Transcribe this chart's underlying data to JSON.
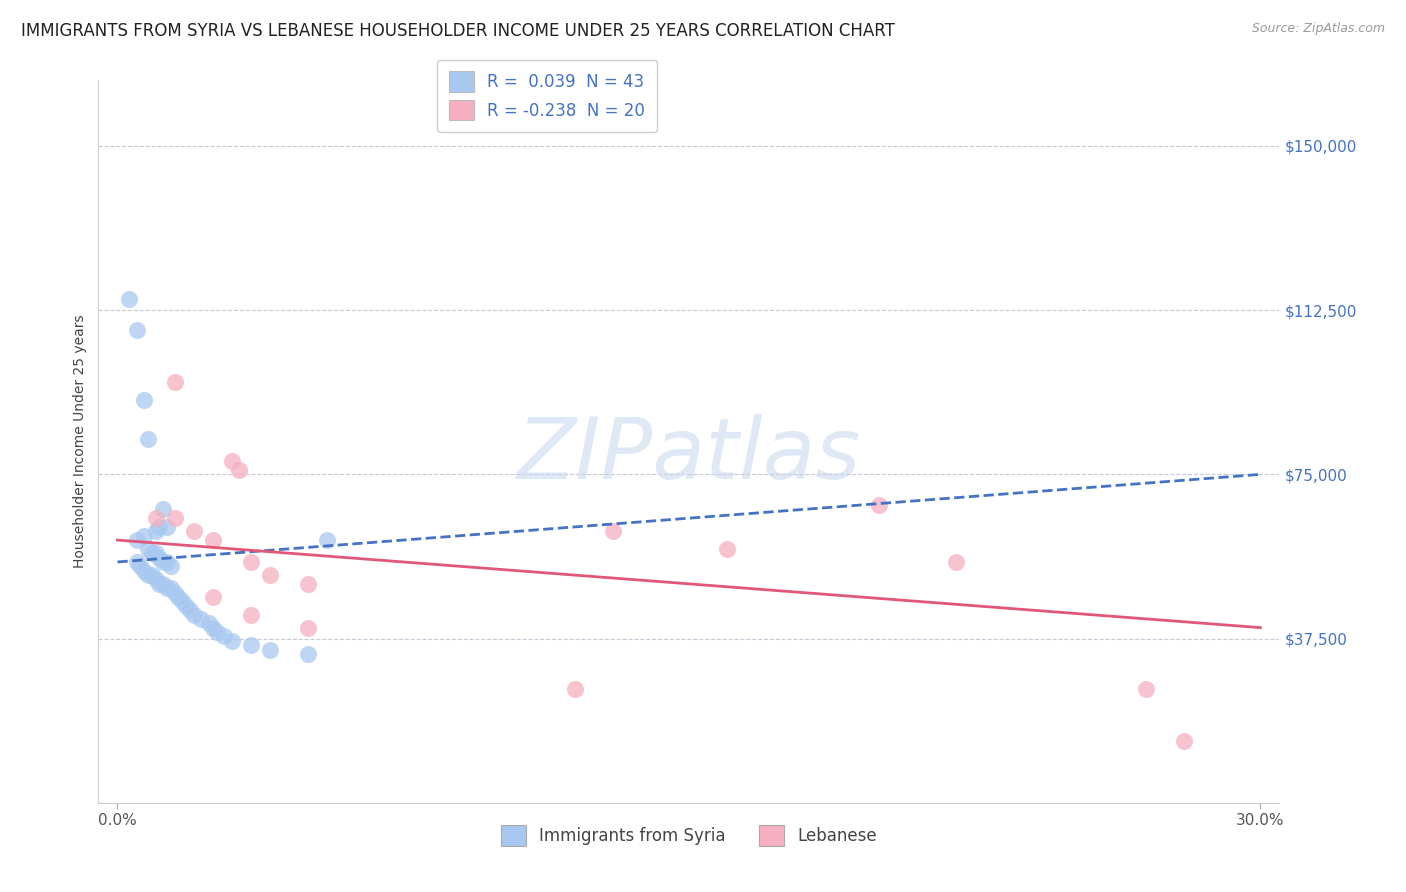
{
  "title": "IMMIGRANTS FROM SYRIA VS LEBANESE HOUSEHOLDER INCOME UNDER 25 YEARS CORRELATION CHART",
  "source": "Source: ZipAtlas.com",
  "ylabel": "Householder Income Under 25 years",
  "xlim": [
    0.0,
    30.0
  ],
  "ylim": [
    0,
    160000
  ],
  "yticks": [
    37500,
    75000,
    112500,
    150000
  ],
  "ytick_labels": [
    "$37,500",
    "$75,000",
    "$112,500",
    "$150,000"
  ],
  "xtick_vals": [
    0.0,
    30.0
  ],
  "xtick_labels": [
    "0.0%",
    "30.0%"
  ],
  "legend_top_labels": [
    "R =  0.039  N = 43",
    "R = -0.238  N = 20"
  ],
  "legend_bottom_labels": [
    "Immigrants from Syria",
    "Lebanese"
  ],
  "syria_color": "#a8c8f0",
  "lebanese_color": "#f5afc0",
  "syria_line_color": "#4472c4",
  "lebanese_line_color": "#e05878",
  "grid_color": "#c8c8d8",
  "watermark_text": "ZIPatlas",
  "background_color": "#ffffff",
  "title_fontsize": 12,
  "ytick_color": "#4472c4",
  "ytick_fontsize": 11,
  "xtick_fontsize": 11,
  "ylabel_fontsize": 10,
  "legend_fontsize": 12,
  "syria_scatter": [
    [
      0.3,
      115000
    ],
    [
      0.5,
      108000
    ],
    [
      0.7,
      92000
    ],
    [
      0.8,
      83000
    ],
    [
      1.0,
      62000
    ],
    [
      1.1,
      63000
    ],
    [
      1.2,
      67000
    ],
    [
      1.3,
      63000
    ],
    [
      0.5,
      60000
    ],
    [
      0.7,
      61000
    ],
    [
      0.8,
      58000
    ],
    [
      0.9,
      57000
    ],
    [
      1.0,
      57000
    ],
    [
      1.1,
      56000
    ],
    [
      1.2,
      55000
    ],
    [
      1.3,
      55000
    ],
    [
      1.4,
      54000
    ],
    [
      0.5,
      55000
    ],
    [
      0.6,
      54000
    ],
    [
      0.7,
      53000
    ],
    [
      0.8,
      52000
    ],
    [
      0.9,
      52000
    ],
    [
      1.0,
      51000
    ],
    [
      1.1,
      50000
    ],
    [
      1.2,
      50000
    ],
    [
      1.3,
      49000
    ],
    [
      1.4,
      49000
    ],
    [
      1.5,
      48000
    ],
    [
      1.6,
      47000
    ],
    [
      1.7,
      46000
    ],
    [
      1.8,
      45000
    ],
    [
      1.9,
      44000
    ],
    [
      2.0,
      43000
    ],
    [
      2.2,
      42000
    ],
    [
      2.4,
      41000
    ],
    [
      2.5,
      40000
    ],
    [
      2.6,
      39000
    ],
    [
      2.8,
      38000
    ],
    [
      3.0,
      37000
    ],
    [
      3.5,
      36000
    ],
    [
      4.0,
      35000
    ],
    [
      5.0,
      34000
    ],
    [
      5.5,
      60000
    ]
  ],
  "lebanese_scatter": [
    [
      1.5,
      96000
    ],
    [
      3.0,
      78000
    ],
    [
      3.2,
      76000
    ],
    [
      1.0,
      65000
    ],
    [
      1.5,
      65000
    ],
    [
      2.0,
      62000
    ],
    [
      2.5,
      60000
    ],
    [
      3.5,
      55000
    ],
    [
      4.0,
      52000
    ],
    [
      5.0,
      50000
    ],
    [
      13.0,
      62000
    ],
    [
      16.0,
      58000
    ],
    [
      20.0,
      68000
    ],
    [
      22.0,
      55000
    ],
    [
      2.5,
      47000
    ],
    [
      3.5,
      43000
    ],
    [
      5.0,
      40000
    ],
    [
      12.0,
      26000
    ],
    [
      27.0,
      26000
    ],
    [
      28.0,
      14000
    ]
  ],
  "syria_trend": [
    0.0,
    55000,
    30.0,
    75000
  ],
  "lebanese_trend": [
    0.0,
    60000,
    30.0,
    40000
  ]
}
